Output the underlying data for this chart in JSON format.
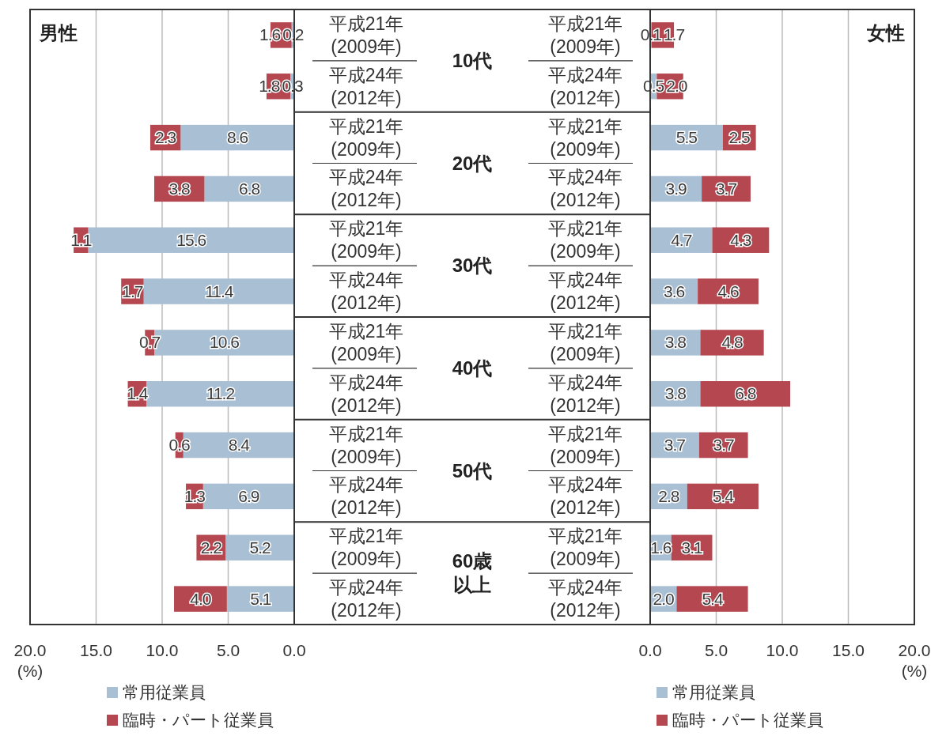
{
  "chart_data": [
    {
      "type": "bar",
      "orientation": "horizontal",
      "stacked": true,
      "title": "男性",
      "xlabel": "(%)",
      "grid": "x",
      "legend": "bottom",
      "categories": [
        "平成21年(2009年)",
        "平成24年(2012年)",
        "平成21年(2009年)",
        "平成24年(2012年)",
        "平成21年(2009年)",
        "平成24年(2012年)",
        "平成21年(2009年)",
        "平成24年(2012年)",
        "平成21年(2009年)",
        "平成24年(2012年)",
        "平成21年(2009年)",
        "平成24年(2012年)"
      ],
      "series": [
        {
          "name": "常用従業員",
          "color": "#a9bfd4",
          "values": [
            0.2,
            0.3,
            8.6,
            6.8,
            15.6,
            11.4,
            10.6,
            11.2,
            8.4,
            6.9,
            5.2,
            5.1
          ],
          "value_labels": [
            "0.2",
            "0.3",
            "8.6",
            "6.8",
            "15.6",
            "11.4",
            "10.6",
            "11.2",
            "8.4",
            "6.9",
            "5.2",
            "5.1"
          ]
        },
        {
          "name": "臨時・パート従業員",
          "color": "#b4474f",
          "values": [
            1.6,
            1.8,
            2.3,
            3.8,
            1.1,
            1.7,
            0.7,
            1.4,
            0.6,
            1.3,
            2.2,
            4.0
          ],
          "value_labels": [
            "1.6",
            "1.8",
            "2.3",
            "3.8",
            "1.1",
            "1.7",
            "0.7",
            "1.4",
            "0.6",
            "1.3",
            "2.2",
            "4.0"
          ]
        }
      ],
      "xlim": [
        20,
        0
      ],
      "xticks": [
        {
          "value": 20,
          "label": "20.0"
        },
        {
          "value": 15,
          "label": "15.0"
        },
        {
          "value": 10,
          "label": "10.0"
        },
        {
          "value": 5,
          "label": "5.0"
        },
        {
          "value": 0,
          "label": "0.0"
        }
      ],
      "annotations": [
        "10代",
        "20代",
        "30代",
        "40代",
        "50代",
        "60歳以上"
      ]
    },
    {
      "type": "bar",
      "orientation": "horizontal",
      "stacked": true,
      "title": "女性",
      "xlabel": "(%)",
      "grid": "x",
      "legend": "bottom",
      "categories": [
        "平成21年(2009年)",
        "平成24年(2012年)",
        "平成21年(2009年)",
        "平成24年(2012年)",
        "平成21年(2009年)",
        "平成24年(2012年)",
        "平成21年(2009年)",
        "平成24年(2012年)",
        "平成21年(2009年)",
        "平成24年(2012年)",
        "平成21年(2009年)",
        "平成24年(2012年)"
      ],
      "series": [
        {
          "name": "常用従業員",
          "color": "#a9bfd4",
          "values": [
            0.1,
            0.5,
            5.5,
            3.9,
            4.7,
            3.6,
            3.8,
            3.8,
            3.7,
            2.8,
            1.6,
            2.0
          ],
          "value_labels": [
            "0.1",
            "0.5",
            "5.5",
            "3.9",
            "4.7",
            "3.6",
            "3.8",
            "3.8",
            "3.7",
            "2.8",
            "1.6",
            "2.0"
          ]
        },
        {
          "name": "臨時・パート従業員",
          "color": "#b4474f",
          "values": [
            1.7,
            2.0,
            2.5,
            3.7,
            4.3,
            4.6,
            4.8,
            6.8,
            3.7,
            5.4,
            3.1,
            5.4
          ],
          "value_labels": [
            "1.7",
            "2.0",
            "2.5",
            "3.7",
            "4.3",
            "4.6",
            "4.8",
            "6.8",
            "3.7",
            "5.4",
            "3.1",
            "5.4"
          ]
        }
      ],
      "xlim": [
        0,
        20
      ],
      "xticks": [
        {
          "value": 0,
          "label": "0.0"
        },
        {
          "value": 5,
          "label": "5.0"
        },
        {
          "value": 10,
          "label": "10.0"
        },
        {
          "value": 15,
          "label": "15.0"
        },
        {
          "value": 20,
          "label": "20.0"
        }
      ]
    }
  ]
}
